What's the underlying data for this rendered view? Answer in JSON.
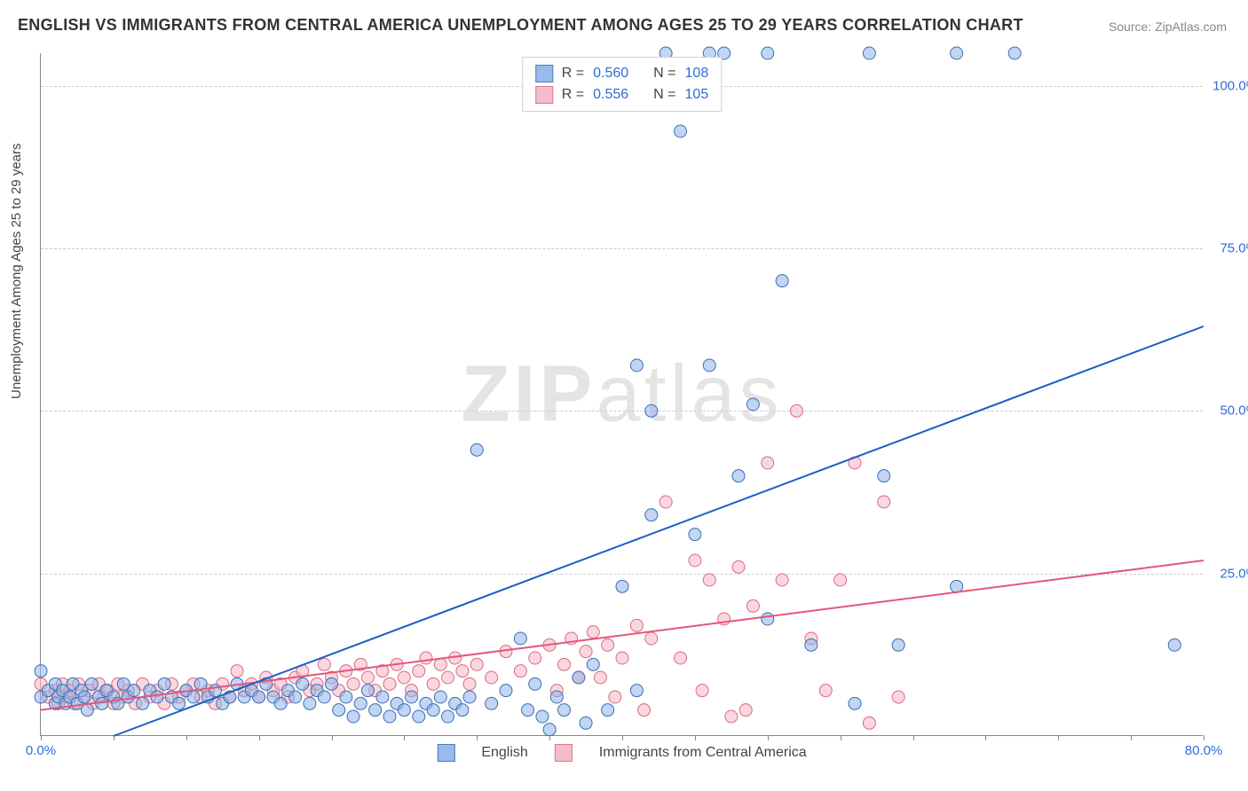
{
  "title": "ENGLISH VS IMMIGRANTS FROM CENTRAL AMERICA UNEMPLOYMENT AMONG AGES 25 TO 29 YEARS CORRELATION CHART",
  "source": "Source: ZipAtlas.com",
  "watermark": {
    "bold": "ZIP",
    "rest": "atlas"
  },
  "y_axis_label": "Unemployment Among Ages 25 to 29 years",
  "chart": {
    "type": "scatter",
    "xlim": [
      0,
      80
    ],
    "ylim": [
      0,
      105
    ],
    "x_ticks_minor": [
      0,
      5,
      10,
      15,
      20,
      25,
      30,
      35,
      40,
      45,
      50,
      55,
      60,
      65,
      70,
      75,
      80
    ],
    "x_tick_labels": [
      {
        "val": 0,
        "label": "0.0%"
      },
      {
        "val": 80,
        "label": "80.0%"
      }
    ],
    "y_gridlines": [
      25,
      50,
      75,
      100
    ],
    "y_tick_labels": [
      {
        "val": 25,
        "label": "25.0%"
      },
      {
        "val": 50,
        "label": "50.0%"
      },
      {
        "val": 75,
        "label": "75.0%"
      },
      {
        "val": 100,
        "label": "100.0%"
      }
    ],
    "grid_color": "#cccccc",
    "background_color": "#ffffff",
    "marker_radius": 7
  },
  "series": {
    "english": {
      "label": "English",
      "color_fill": "#8fb3e8",
      "color_stroke": "#3b6fb3",
      "trend_color": "#1f5fc2",
      "R": "0.560",
      "N": "108",
      "trend": {
        "x1": 5,
        "y1": 0,
        "x2": 80,
        "y2": 63
      },
      "points": [
        [
          0,
          10
        ],
        [
          0,
          6
        ],
        [
          0.5,
          7
        ],
        [
          1,
          5
        ],
        [
          1,
          8
        ],
        [
          1.2,
          6
        ],
        [
          1.5,
          7
        ],
        [
          1.7,
          5
        ],
        [
          2,
          6
        ],
        [
          2.2,
          8
        ],
        [
          2.5,
          5
        ],
        [
          2.8,
          7
        ],
        [
          3,
          6
        ],
        [
          3.2,
          4
        ],
        [
          3.5,
          8
        ],
        [
          4,
          6
        ],
        [
          4.2,
          5
        ],
        [
          4.5,
          7
        ],
        [
          5,
          6
        ],
        [
          5.3,
          5
        ],
        [
          5.7,
          8
        ],
        [
          6,
          6
        ],
        [
          6.4,
          7
        ],
        [
          7,
          5
        ],
        [
          7.5,
          7
        ],
        [
          8,
          6
        ],
        [
          8.5,
          8
        ],
        [
          9,
          6
        ],
        [
          9.5,
          5
        ],
        [
          10,
          7
        ],
        [
          10.5,
          6
        ],
        [
          11,
          8
        ],
        [
          11.5,
          6
        ],
        [
          12,
          7
        ],
        [
          12.5,
          5
        ],
        [
          13,
          6
        ],
        [
          13.5,
          8
        ],
        [
          14,
          6
        ],
        [
          14.5,
          7
        ],
        [
          15,
          6
        ],
        [
          15.5,
          8
        ],
        [
          16,
          6
        ],
        [
          16.5,
          5
        ],
        [
          17,
          7
        ],
        [
          17.5,
          6
        ],
        [
          18,
          8
        ],
        [
          18.5,
          5
        ],
        [
          19,
          7
        ],
        [
          19.5,
          6
        ],
        [
          20,
          8
        ],
        [
          20.5,
          4
        ],
        [
          21,
          6
        ],
        [
          21.5,
          3
        ],
        [
          22,
          5
        ],
        [
          22.5,
          7
        ],
        [
          23,
          4
        ],
        [
          23.5,
          6
        ],
        [
          24,
          3
        ],
        [
          24.5,
          5
        ],
        [
          25,
          4
        ],
        [
          25.5,
          6
        ],
        [
          26,
          3
        ],
        [
          26.5,
          5
        ],
        [
          27,
          4
        ],
        [
          27.5,
          6
        ],
        [
          28,
          3
        ],
        [
          28.5,
          5
        ],
        [
          29,
          4
        ],
        [
          29.5,
          6
        ],
        [
          30,
          44
        ],
        [
          31,
          5
        ],
        [
          32,
          7
        ],
        [
          33,
          15
        ],
        [
          33.5,
          4
        ],
        [
          34,
          8
        ],
        [
          34.5,
          3
        ],
        [
          35,
          1
        ],
        [
          35.5,
          6
        ],
        [
          36,
          4
        ],
        [
          37,
          9
        ],
        [
          37.5,
          2
        ],
        [
          38,
          11
        ],
        [
          39,
          4
        ],
        [
          40,
          23
        ],
        [
          41,
          57
        ],
        [
          41,
          7
        ],
        [
          42,
          34
        ],
        [
          42,
          50
        ],
        [
          43,
          105
        ],
        [
          44,
          93
        ],
        [
          45,
          31
        ],
        [
          46,
          105
        ],
        [
          46,
          57
        ],
        [
          47,
          105
        ],
        [
          48,
          40
        ],
        [
          49,
          51
        ],
        [
          50,
          105
        ],
        [
          50,
          18
        ],
        [
          51,
          70
        ],
        [
          53,
          14
        ],
        [
          56,
          5
        ],
        [
          57,
          105
        ],
        [
          58,
          40
        ],
        [
          59,
          14
        ],
        [
          63,
          105
        ],
        [
          63,
          23
        ],
        [
          67,
          105
        ],
        [
          78,
          14
        ]
      ]
    },
    "immigrants": {
      "label": "Immigrants from Central America",
      "color_fill": "#f5b6c4",
      "color_stroke": "#d96a86",
      "trend_color": "#e4567a",
      "R": "0.556",
      "N": "105",
      "trend": {
        "x1": 0,
        "y1": 4,
        "x2": 80,
        "y2": 27
      },
      "points": [
        [
          0,
          8
        ],
        [
          0.5,
          6
        ],
        [
          1,
          7
        ],
        [
          1.2,
          5
        ],
        [
          1.5,
          8
        ],
        [
          1.8,
          6
        ],
        [
          2,
          7
        ],
        [
          2.3,
          5
        ],
        [
          2.6,
          8
        ],
        [
          3,
          6
        ],
        [
          3.3,
          7
        ],
        [
          3.6,
          5
        ],
        [
          4,
          8
        ],
        [
          4.3,
          6
        ],
        [
          4.6,
          7
        ],
        [
          5,
          5
        ],
        [
          5.3,
          8
        ],
        [
          5.6,
          6
        ],
        [
          6,
          7
        ],
        [
          6.5,
          5
        ],
        [
          7,
          8
        ],
        [
          7.5,
          6
        ],
        [
          8,
          7
        ],
        [
          8.5,
          5
        ],
        [
          9,
          8
        ],
        [
          9.5,
          6
        ],
        [
          10,
          7
        ],
        [
          10.5,
          8
        ],
        [
          11,
          6
        ],
        [
          11.5,
          7
        ],
        [
          12,
          5
        ],
        [
          12.5,
          8
        ],
        [
          13,
          6
        ],
        [
          13.5,
          10
        ],
        [
          14,
          7
        ],
        [
          14.5,
          8
        ],
        [
          15,
          6
        ],
        [
          15.5,
          9
        ],
        [
          16,
          7
        ],
        [
          16.5,
          8
        ],
        [
          17,
          6
        ],
        [
          17.5,
          9
        ],
        [
          18,
          10
        ],
        [
          18.5,
          7
        ],
        [
          19,
          8
        ],
        [
          19.5,
          11
        ],
        [
          20,
          9
        ],
        [
          20.5,
          7
        ],
        [
          21,
          10
        ],
        [
          21.5,
          8
        ],
        [
          22,
          11
        ],
        [
          22.5,
          9
        ],
        [
          23,
          7
        ],
        [
          23.5,
          10
        ],
        [
          24,
          8
        ],
        [
          24.5,
          11
        ],
        [
          25,
          9
        ],
        [
          25.5,
          7
        ],
        [
          26,
          10
        ],
        [
          26.5,
          12
        ],
        [
          27,
          8
        ],
        [
          27.5,
          11
        ],
        [
          28,
          9
        ],
        [
          28.5,
          12
        ],
        [
          29,
          10
        ],
        [
          29.5,
          8
        ],
        [
          30,
          11
        ],
        [
          31,
          9
        ],
        [
          32,
          13
        ],
        [
          33,
          10
        ],
        [
          34,
          12
        ],
        [
          35,
          14
        ],
        [
          35.5,
          7
        ],
        [
          36,
          11
        ],
        [
          36.5,
          15
        ],
        [
          37,
          9
        ],
        [
          37.5,
          13
        ],
        [
          38,
          16
        ],
        [
          38.5,
          9
        ],
        [
          39,
          14
        ],
        [
          39.5,
          6
        ],
        [
          40,
          12
        ],
        [
          41,
          17
        ],
        [
          41.5,
          4
        ],
        [
          42,
          15
        ],
        [
          43,
          36
        ],
        [
          44,
          12
        ],
        [
          45,
          27
        ],
        [
          45.5,
          7
        ],
        [
          46,
          24
        ],
        [
          47,
          18
        ],
        [
          47.5,
          3
        ],
        [
          48,
          26
        ],
        [
          48.5,
          4
        ],
        [
          49,
          20
        ],
        [
          50,
          42
        ],
        [
          51,
          24
        ],
        [
          52,
          50
        ],
        [
          53,
          15
        ],
        [
          54,
          7
        ],
        [
          55,
          24
        ],
        [
          56,
          42
        ],
        [
          57,
          2
        ],
        [
          58,
          36
        ],
        [
          59,
          6
        ]
      ]
    }
  },
  "legend_top_labels": {
    "R_prefix": "R =",
    "N_prefix": "N ="
  },
  "legend_bottom": [
    {
      "key": "english"
    },
    {
      "key": "immigrants"
    }
  ]
}
